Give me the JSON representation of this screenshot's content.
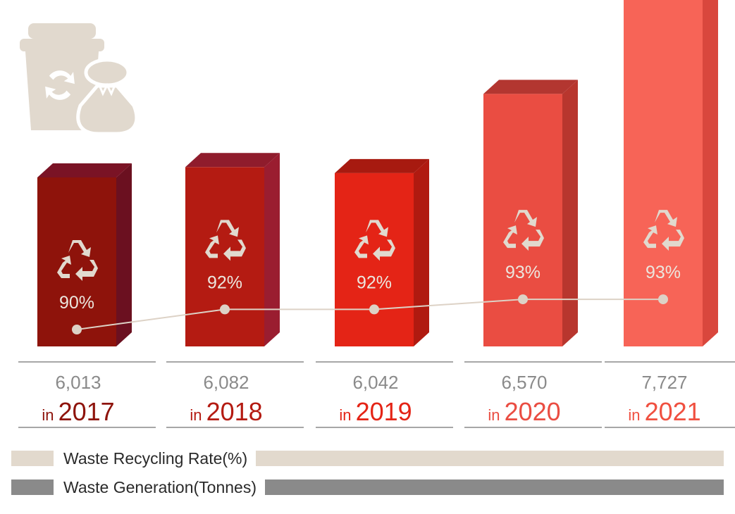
{
  "chart_data": {
    "type": "bar",
    "categories": [
      "2017",
      "2018",
      "2019",
      "2020",
      "2021"
    ],
    "year_prefix": "in",
    "series": [
      {
        "name": "Waste Generation(Tonnes)",
        "values": [
          6013,
          6082,
          6042,
          6570,
          7727
        ],
        "labels": [
          "6,013",
          "6,082",
          "6,042",
          "6,570",
          "7,727"
        ]
      },
      {
        "name": "Waste Recycling Rate(%)",
        "values": [
          90,
          92,
          92,
          93,
          93
        ],
        "labels": [
          "90%",
          "92%",
          "92%",
          "93%",
          "93%"
        ]
      }
    ],
    "bar_colors": {
      "front": [
        "#8e130b",
        "#b41b12",
        "#e42416",
        "#ea4d42",
        "#f76457"
      ],
      "top": [
        "#7a1325",
        "#8f1c2c",
        "#a71a10",
        "#b33630",
        "#c94a40"
      ],
      "side": [
        "#6b1020",
        "#9a1d30",
        "#b01a10",
        "#b8362e",
        "#d9473d"
      ]
    },
    "year_colors": [
      "#8e130b",
      "#b41b12",
      "#e42416",
      "#ea4d42",
      "#f05040"
    ],
    "legend": {
      "rate_label": "Waste Recycling Rate(%)",
      "generation_label": "Waste Generation(Tonnes)",
      "rate_color": "#e2d9cd",
      "generation_color": "#8a8a8a"
    },
    "icon_color": "#e1d9ce",
    "line_color": "#ddd2c6"
  }
}
